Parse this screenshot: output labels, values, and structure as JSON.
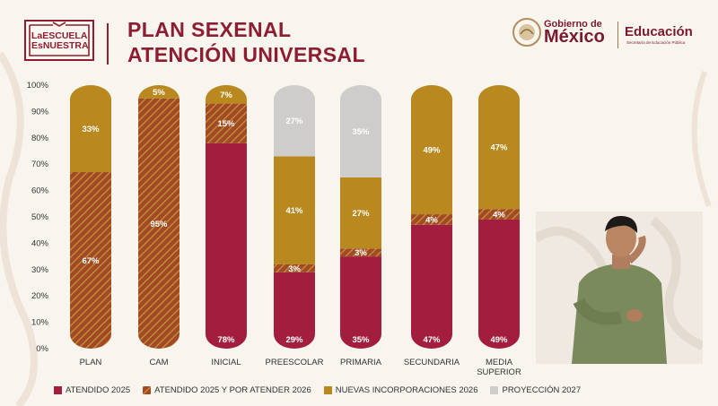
{
  "header": {
    "logo_line1": "LaESCUELA",
    "logo_line2": "EsNUESTRA",
    "title_line1": "PLAN SEXENAL",
    "title_line2": "ATENCIÓN UNIVERSAL",
    "gobierno_small": "Gobierno de",
    "gobierno_big": "México",
    "educacion": "Educación",
    "educacion_sub": "Secretaría de Educación Pública"
  },
  "colors": {
    "atendido": "#a31d3f",
    "atendido_por_atender": "#a14a25",
    "nuevas": "#b9891f",
    "proyeccion": "#cfcdcb",
    "title": "#8e1d31"
  },
  "chart_data": {
    "type": "bar",
    "stacked": true,
    "title": "PLAN SEXENAL ATENCIÓN UNIVERSAL",
    "categories": [
      "PLAN",
      "CAM",
      "INICIAL",
      "PREESCOLAR",
      "PRIMARIA",
      "SECUNDARIA",
      "MEDIA SUPERIOR"
    ],
    "ylim": [
      0,
      100
    ],
    "yticks": [
      "0%",
      "10%",
      "20%",
      "30%",
      "40%",
      "50%",
      "60%",
      "70%",
      "80%",
      "90%",
      "100%"
    ],
    "series": [
      {
        "name": "ATENDIDO 2025",
        "values": [
          0,
          0,
          78,
          29,
          35,
          47,
          49
        ],
        "labels": [
          "",
          "",
          "78%",
          "29%",
          "35%",
          "47%",
          "49%"
        ]
      },
      {
        "name": "ATENDIDO 2025 Y POR ATENDER 2026",
        "values": [
          67,
          95,
          15,
          3,
          3,
          4,
          4
        ],
        "labels": [
          "67%",
          "95%",
          "15%",
          "3%",
          "3%",
          "4%",
          "4%"
        ]
      },
      {
        "name": "NUEVAS INCORPORACIONES 2026",
        "values": [
          33,
          5,
          7,
          41,
          27,
          49,
          47
        ],
        "labels": [
          "33%",
          "5%",
          "7%",
          "41%",
          "27%",
          "49%",
          "47%"
        ]
      },
      {
        "name": "PROYECCIÓN 2027",
        "values": [
          0,
          0,
          0,
          27,
          35,
          0,
          0
        ],
        "labels": [
          "",
          "",
          "",
          "27%",
          "35%",
          "",
          ""
        ]
      }
    ],
    "legend": "bottom"
  }
}
